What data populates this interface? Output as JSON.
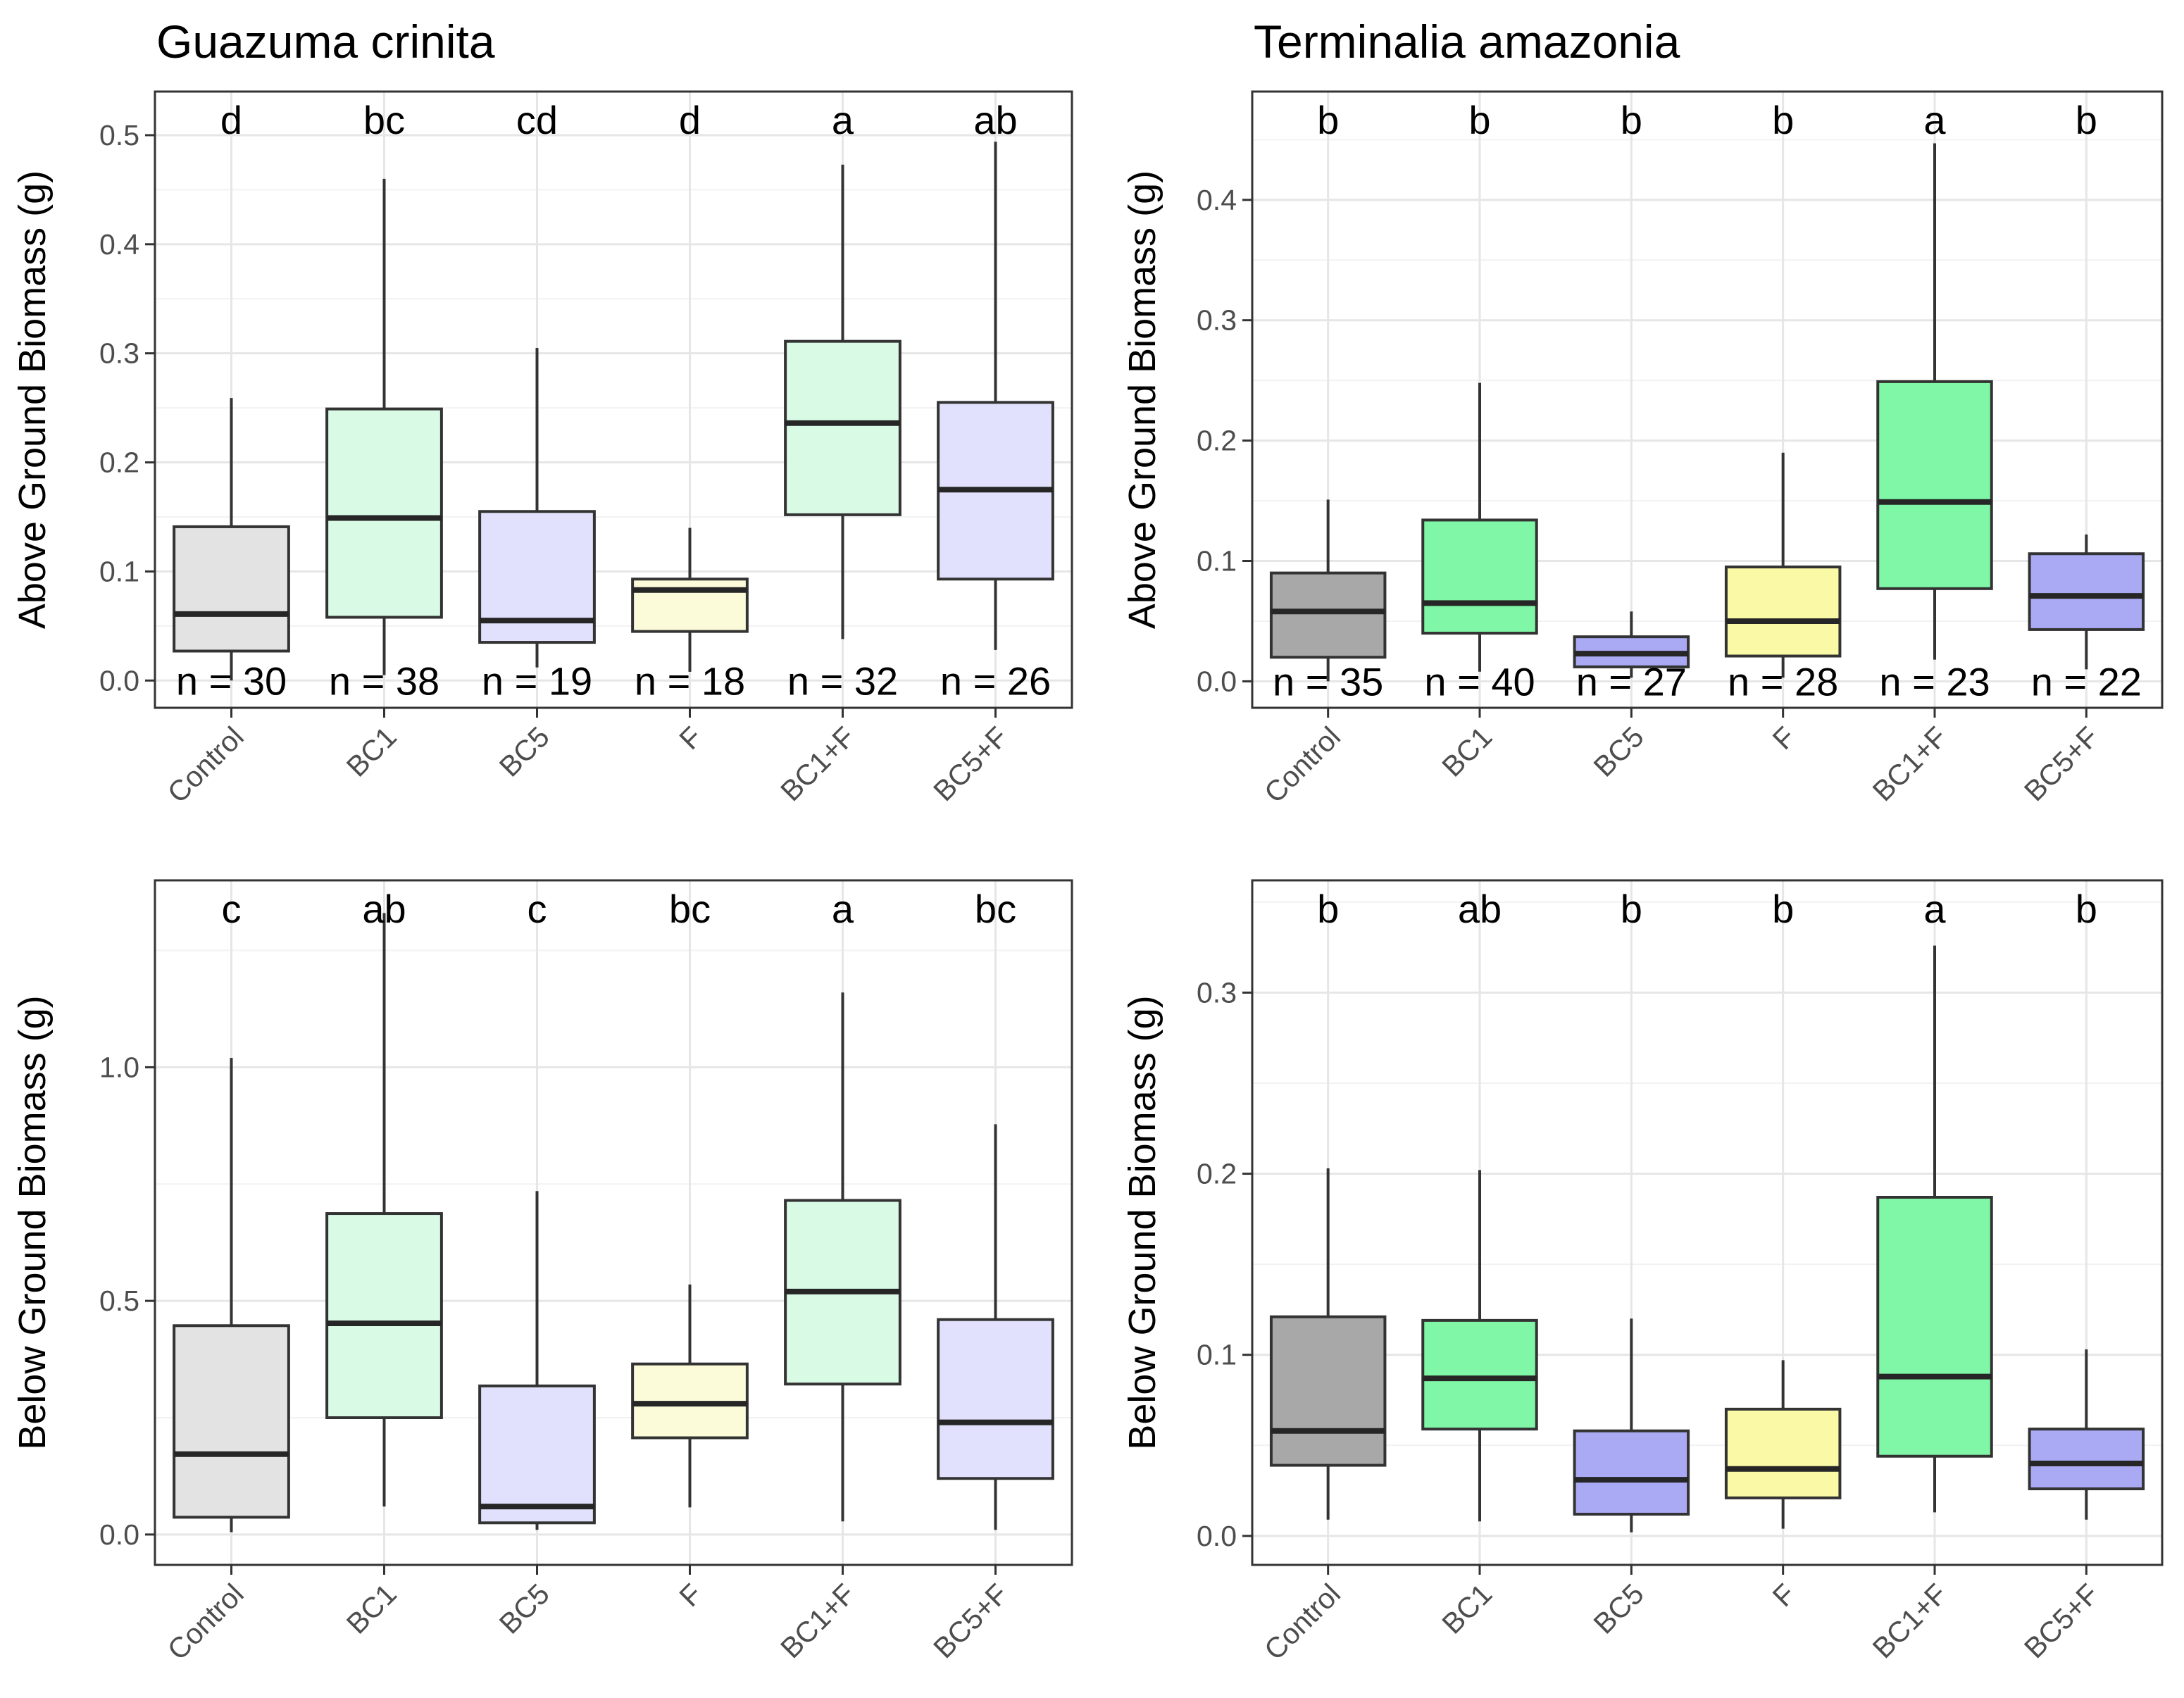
{
  "chart_data": [
    {
      "type": "box",
      "title": "Guazuma crinita",
      "ylabel": "Above Ground Biomass (g)",
      "ylim": [
        -0.025,
        0.54
      ],
      "yticks": [
        0.0,
        0.1,
        0.2,
        0.3,
        0.4,
        0.5
      ],
      "yticklabels": [
        "0.0",
        "0.1",
        "0.2",
        "0.3",
        "0.4",
        "0.5"
      ],
      "categories": [
        "Control",
        "BC1",
        "BC5",
        "F",
        "BC1+F",
        "BC5+F"
      ],
      "letters": [
        "d",
        "bc",
        "cd",
        "d",
        "a",
        "ab"
      ],
      "n_labels": [
        "n = 30",
        "n = 38",
        "n = 19",
        "n = 18",
        "n = 32",
        "n = 26"
      ],
      "fills": [
        "#e3e3e3",
        "#d9fbe6",
        "#e1e1fd",
        "#fbfbda",
        "#d9fbe6",
        "#e1e1fd"
      ],
      "boxes": [
        {
          "whislo": 0.0,
          "q1": 0.027,
          "med": 0.061,
          "q3": 0.141,
          "whishi": 0.259
        },
        {
          "whislo": 0.005,
          "q1": 0.058,
          "med": 0.149,
          "q3": 0.249,
          "whishi": 0.46
        },
        {
          "whislo": 0.012,
          "q1": 0.035,
          "med": 0.055,
          "q3": 0.155,
          "whishi": 0.305
        },
        {
          "whislo": 0.008,
          "q1": 0.045,
          "med": 0.083,
          "q3": 0.093,
          "whishi": 0.14
        },
        {
          "whislo": 0.038,
          "q1": 0.152,
          "med": 0.236,
          "q3": 0.311,
          "whishi": 0.473
        },
        {
          "whislo": 0.028,
          "q1": 0.093,
          "med": 0.175,
          "q3": 0.255,
          "whishi": 0.494
        }
      ]
    },
    {
      "type": "box",
      "title": "Terminalia amazonia",
      "ylabel": "Above Ground Biomass (g)",
      "ylim": [
        -0.022,
        0.49
      ],
      "yticks": [
        0.0,
        0.1,
        0.2,
        0.3,
        0.4
      ],
      "yticklabels": [
        "0.0",
        "0.1",
        "0.2",
        "0.3",
        "0.4"
      ],
      "categories": [
        "Control",
        "BC1",
        "BC5",
        "F",
        "BC1+F",
        "BC5+F"
      ],
      "letters": [
        "b",
        "b",
        "b",
        "b",
        "a",
        "b"
      ],
      "n_labels": [
        "n = 35",
        "n = 40",
        "n = 27",
        "n = 28",
        "n = 23",
        "n = 22"
      ],
      "fills": [
        "#a8a8a8",
        "#7ff7a6",
        "#a9a9f4",
        "#f9f9a6",
        "#7ff7a6",
        "#a9a9f4"
      ],
      "boxes": [
        {
          "whislo": 0.0,
          "q1": 0.02,
          "med": 0.058,
          "q3": 0.09,
          "whishi": 0.151
        },
        {
          "whislo": 0.008,
          "q1": 0.04,
          "med": 0.065,
          "q3": 0.134,
          "whishi": 0.248
        },
        {
          "whislo": 0.003,
          "q1": 0.012,
          "med": 0.023,
          "q3": 0.037,
          "whishi": 0.058
        },
        {
          "whislo": 0.003,
          "q1": 0.021,
          "med": 0.05,
          "q3": 0.095,
          "whishi": 0.19
        },
        {
          "whislo": 0.018,
          "q1": 0.077,
          "med": 0.149,
          "q3": 0.249,
          "whishi": 0.447
        },
        {
          "whislo": 0.01,
          "q1": 0.043,
          "med": 0.071,
          "q3": 0.106,
          "whishi": 0.122
        }
      ]
    },
    {
      "type": "box",
      "title": "",
      "ylabel": "Below Ground Biomass (g)",
      "ylim": [
        -0.065,
        1.4
      ],
      "yticks": [
        0.0,
        0.5,
        1.0
      ],
      "yticklabels": [
        "0.0",
        "0.5",
        "1.0"
      ],
      "categories": [
        "Control",
        "BC1",
        "BC5",
        "F",
        "BC1+F",
        "BC5+F"
      ],
      "letters": [
        "c",
        "ab",
        "c",
        "bc",
        "a",
        "bc"
      ],
      "n_labels": [],
      "fills": [
        "#e3e3e3",
        "#d9fbe6",
        "#e1e1fd",
        "#fbfbda",
        "#d9fbe6",
        "#e1e1fd"
      ],
      "boxes": [
        {
          "whislo": 0.005,
          "q1": 0.037,
          "med": 0.172,
          "q3": 0.447,
          "whishi": 1.02
        },
        {
          "whislo": 0.06,
          "q1": 0.25,
          "med": 0.452,
          "q3": 0.687,
          "whishi": 1.33
        },
        {
          "whislo": 0.01,
          "q1": 0.025,
          "med": 0.06,
          "q3": 0.318,
          "whishi": 0.735
        },
        {
          "whislo": 0.058,
          "q1": 0.207,
          "med": 0.28,
          "q3": 0.365,
          "whishi": 0.535
        },
        {
          "whislo": 0.028,
          "q1": 0.322,
          "med": 0.52,
          "q3": 0.715,
          "whishi": 1.16
        },
        {
          "whislo": 0.01,
          "q1": 0.12,
          "med": 0.24,
          "q3": 0.46,
          "whishi": 0.878
        }
      ]
    },
    {
      "type": "box",
      "title": "",
      "ylabel": "Below Ground Biomass (g)",
      "ylim": [
        -0.016,
        0.362
      ],
      "yticks": [
        0.0,
        0.1,
        0.2,
        0.3
      ],
      "yticklabels": [
        "0.0",
        "0.1",
        "0.2",
        "0.3"
      ],
      "categories": [
        "Control",
        "BC1",
        "BC5",
        "F",
        "BC1+F",
        "BC5+F"
      ],
      "letters": [
        "b",
        "ab",
        "b",
        "b",
        "a",
        "b"
      ],
      "n_labels": [],
      "fills": [
        "#a8a8a8",
        "#7ff7a6",
        "#a9a9f4",
        "#f9f9a6",
        "#7ff7a6",
        "#a9a9f4"
      ],
      "boxes": [
        {
          "whislo": 0.009,
          "q1": 0.039,
          "med": 0.058,
          "q3": 0.121,
          "whishi": 0.203
        },
        {
          "whislo": 0.008,
          "q1": 0.059,
          "med": 0.087,
          "q3": 0.119,
          "whishi": 0.202
        },
        {
          "whislo": 0.002,
          "q1": 0.012,
          "med": 0.031,
          "q3": 0.058,
          "whishi": 0.12
        },
        {
          "whislo": 0.004,
          "q1": 0.021,
          "med": 0.037,
          "q3": 0.07,
          "whishi": 0.097
        },
        {
          "whislo": 0.013,
          "q1": 0.044,
          "med": 0.088,
          "q3": 0.187,
          "whishi": 0.326
        },
        {
          "whislo": 0.009,
          "q1": 0.026,
          "med": 0.04,
          "q3": 0.059,
          "whishi": 0.103
        }
      ]
    }
  ]
}
